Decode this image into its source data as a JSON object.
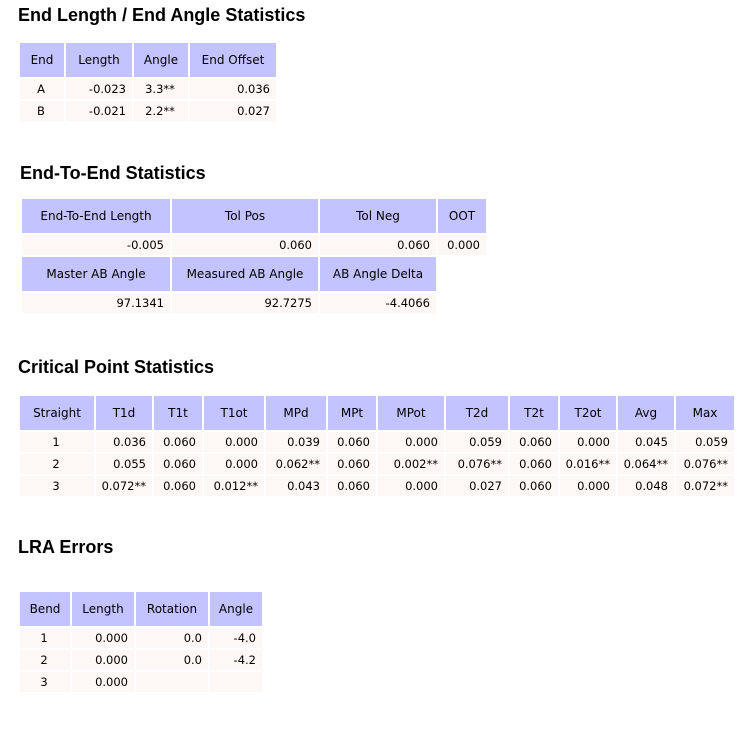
{
  "sections": {
    "end_length": {
      "title": "End Length / End Angle Statistics",
      "headers": [
        "End",
        "Length",
        "Angle",
        "End Offset"
      ],
      "rows": [
        [
          "A",
          "-0.023",
          "3.3**",
          "0.036"
        ],
        [
          "B",
          "-0.021",
          "2.2**",
          "0.027"
        ]
      ]
    },
    "end_to_end": {
      "title": "End-To-End Statistics",
      "headers1": [
        "End-To-End Length",
        "Tol Pos",
        "Tol Neg",
        "OOT"
      ],
      "row1": [
        "-0.005",
        "0.060",
        "0.060",
        "0.000"
      ],
      "headers2": [
        "Master AB Angle",
        "Measured AB Angle",
        "AB Angle Delta"
      ],
      "row2": [
        "97.1341",
        "92.7275",
        "-4.4066"
      ]
    },
    "critical": {
      "title": "Critical Point Statistics",
      "headers": [
        "Straight",
        "T1d",
        "T1t",
        "T1ot",
        "MPd",
        "MPt",
        "MPot",
        "T2d",
        "T2t",
        "T2ot",
        "Avg",
        "Max"
      ],
      "rows": [
        [
          "1",
          "0.036",
          "0.060",
          "0.000",
          "0.039",
          "0.060",
          "0.000",
          "0.059",
          "0.060",
          "0.000",
          "0.045",
          "0.059"
        ],
        [
          "2",
          "0.055",
          "0.060",
          "0.000",
          "0.062**",
          "0.060",
          "0.002**",
          "0.076**",
          "0.060",
          "0.016**",
          "0.064**",
          "0.076**"
        ],
        [
          "3",
          "0.072**",
          "0.060",
          "0.012**",
          "0.043",
          "0.060",
          "0.000",
          "0.027",
          "0.060",
          "0.000",
          "0.048",
          "0.072**"
        ]
      ]
    },
    "lra": {
      "title": "LRA Errors",
      "headers": [
        "Bend",
        "Length",
        "Rotation",
        "Angle"
      ],
      "rows": [
        [
          "1",
          "0.000",
          "0.0",
          "-4.0"
        ],
        [
          "2",
          "0.000",
          "0.0",
          "-4.2"
        ],
        [
          "3",
          "0.000",
          "",
          ""
        ]
      ]
    }
  }
}
